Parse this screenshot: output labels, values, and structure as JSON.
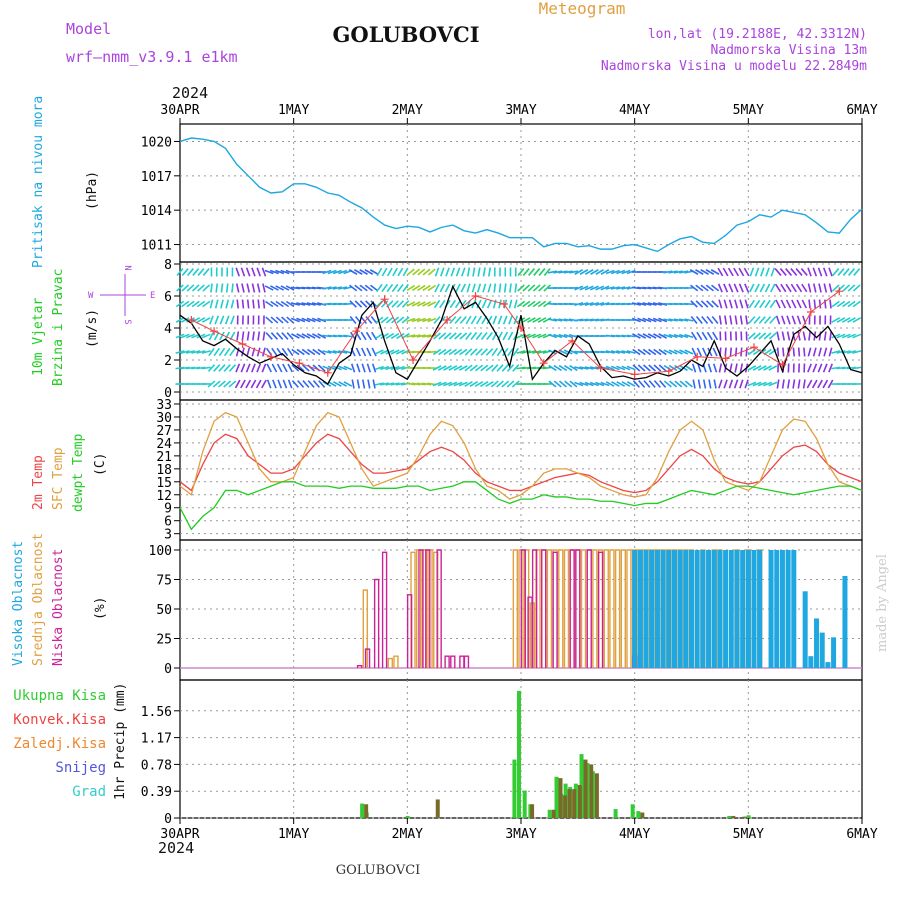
{
  "header": {
    "model_label": "Model",
    "model_name": "wrf—nmm_v3.9.1 e1km",
    "station": "GOLUBOVCI",
    "product": "Meteogram",
    "lonlat": "lon,lat (19.2188E, 42.3312N)",
    "elevation": "Nadmorska Visina 13m",
    "model_elevation": "Nadmorska Visina u modelu 22.2849m",
    "year": "2024",
    "footer_station": "GOLUBOVCI",
    "watermark": "made by Angel"
  },
  "colors": {
    "pressure": "#1ea7e0",
    "wind_label": "#22cc22",
    "temp2m": "#ee4444",
    "sfc": "#e0a040",
    "dewpt": "#22cc22",
    "cloud_high": "#1ea7e0",
    "cloud_mid": "#e0a040",
    "cloud_low": "#cc2299",
    "precip_total": "#33cc33",
    "precip_conv": "#ee4444",
    "precip_strat": "#ee8833",
    "snow": "#5555dd",
    "hail": "#33cccc",
    "direction": "#aa44dd"
  },
  "x_axis": {
    "dates": [
      "30APR",
      "1MAY",
      "2MAY",
      "3MAY",
      "4MAY",
      "5MAY",
      "6MAY"
    ]
  },
  "chart_data": [
    {
      "type": "line",
      "name": "pressure",
      "ylabel": "Pritisak na nivou mora",
      "unit": "(hPa)",
      "ylim": [
        1010,
        1021
      ],
      "yticks": [
        1011,
        1014,
        1017,
        1020
      ],
      "grid": true,
      "x_unit": "days from 30APR",
      "x": [
        0,
        0.1,
        0.2,
        0.3,
        0.4,
        0.5,
        0.6,
        0.7,
        0.8,
        0.9,
        1.0,
        1.1,
        1.2,
        1.3,
        1.4,
        1.5,
        1.6,
        1.7,
        1.8,
        1.9,
        2.0,
        2.1,
        2.2,
        2.3,
        2.4,
        2.5,
        2.6,
        2.7,
        2.8,
        2.9,
        3.0,
        3.1,
        3.2,
        3.3,
        3.4,
        3.5,
        3.6,
        3.7,
        3.8,
        3.9,
        4.0,
        4.1,
        4.2,
        4.3,
        4.4,
        4.5,
        4.6,
        4.7,
        4.8,
        4.9,
        5.0,
        5.1,
        5.2,
        5.3,
        5.4,
        5.5,
        5.6,
        5.7,
        5.8,
        5.9,
        6.0
      ],
      "values": [
        1020,
        1020.3,
        1020.2,
        1020,
        1019.4,
        1018,
        1017,
        1016,
        1015.5,
        1015.6,
        1016.3,
        1016.3,
        1016,
        1015.5,
        1015.3,
        1014.7,
        1014.2,
        1013.4,
        1012.7,
        1012.4,
        1012.6,
        1012.5,
        1012.1,
        1012.5,
        1012.7,
        1012.2,
        1012.0,
        1012.3,
        1012.0,
        1011.6,
        1011.6,
        1011.6,
        1010.8,
        1011.1,
        1011.1,
        1010.8,
        1010.9,
        1010.6,
        1010.6,
        1010.9,
        1011.0,
        1010.7,
        1010.4,
        1011.0,
        1011.5,
        1011.7,
        1011.2,
        1011.1,
        1011.8,
        1012.7,
        1013.0,
        1013.6,
        1013.4,
        1014.0,
        1013.8,
        1013.6,
        1012.9,
        1012.1,
        1012.0,
        1013.2,
        1014.1
      ]
    },
    {
      "type": "line",
      "name": "wind",
      "ylabel_1": "10m Vjetar",
      "ylabel_2": "Brzina i Pravac",
      "unit": "(m/s)",
      "ylim": [
        0,
        8
      ],
      "yticks": [
        0,
        2,
        4,
        6,
        8
      ],
      "compass": {
        "n": "N",
        "s": "S",
        "w": "W",
        "e": "E"
      },
      "x_unit": "days from 30APR",
      "speed_x": [
        0,
        0.1,
        0.2,
        0.3,
        0.4,
        0.5,
        0.6,
        0.7,
        0.8,
        0.9,
        1.0,
        1.1,
        1.2,
        1.3,
        1.4,
        1.5,
        1.6,
        1.7,
        1.8,
        1.9,
        2.0,
        2.1,
        2.2,
        2.3,
        2.4,
        2.5,
        2.6,
        2.7,
        2.8,
        2.9,
        3.0,
        3.1,
        3.2,
        3.3,
        3.4,
        3.5,
        3.6,
        3.7,
        3.8,
        3.9,
        4.0,
        4.1,
        4.2,
        4.3,
        4.4,
        4.5,
        4.6,
        4.7,
        4.8,
        4.9,
        5.0,
        5.1,
        5.2,
        5.3,
        5.4,
        5.5,
        5.6,
        5.7,
        5.8,
        5.9,
        6.0
      ],
      "speed": [
        4.8,
        4.3,
        3.2,
        2.9,
        3.3,
        2.7,
        2.2,
        1.8,
        2.1,
        2.4,
        1.7,
        1.2,
        1.0,
        0.5,
        1.8,
        2.3,
        4.8,
        5.6,
        3.2,
        1.2,
        0.8,
        2.0,
        3.2,
        4.5,
        6.6,
        5.2,
        5.6,
        4.6,
        3.4,
        1.6,
        4.8,
        0.8,
        1.8,
        2.6,
        2.2,
        3.5,
        3.0,
        1.6,
        0.9,
        1.0,
        0.8,
        0.9,
        1.2,
        1.0,
        1.3,
        2.0,
        1.6,
        3.2,
        1.5,
        1.0,
        1.6,
        2.4,
        3.2,
        1.3,
        3.6,
        4.1,
        3.4,
        4.1,
        3.0,
        1.4,
        1.2
      ],
      "gust_x": [
        0.1,
        0.3,
        0.55,
        0.8,
        1.05,
        1.3,
        1.55,
        1.8,
        2.05,
        2.35,
        2.6,
        2.85,
        3.0,
        3.2,
        3.45,
        3.7,
        4.0,
        4.3,
        4.55,
        4.8,
        5.05,
        5.3,
        5.55,
        5.8
      ],
      "gust": [
        4.5,
        3.8,
        3.0,
        2.2,
        1.8,
        1.2,
        3.8,
        5.8,
        2.0,
        4.5,
        6.0,
        5.5,
        4.0,
        1.8,
        3.2,
        1.5,
        1.1,
        1.3,
        2.2,
        2.1,
        2.8,
        1.7,
        5.0,
        6.3
      ],
      "direction_x": [
        0,
        0.25,
        0.5,
        0.75,
        1.0,
        1.25,
        1.5,
        1.75,
        2.0,
        2.25,
        2.5,
        2.75,
        3.0,
        3.25,
        3.5,
        3.75,
        4.0,
        4.25,
        4.5,
        4.75,
        5.0,
        5.25,
        5.5,
        5.75,
        6.0
      ],
      "direction_deg": [
        220,
        180,
        160,
        110,
        90,
        70,
        120,
        210,
        230,
        200,
        190,
        180,
        40,
        80,
        60,
        70,
        90,
        80,
        120,
        150,
        200,
        140,
        160,
        220,
        140
      ]
    },
    {
      "type": "line",
      "name": "temperature",
      "ylabel_1": "2m Temp",
      "ylabel_2": "SFC Temp",
      "ylabel_3": "dewpt Temp",
      "unit": "(C)",
      "ylim": [
        2,
        33
      ],
      "yticks": [
        3,
        6,
        9,
        12,
        15,
        18,
        21,
        24,
        27,
        30,
        33
      ],
      "x_unit": "days from 30APR",
      "x": [
        0,
        0.1,
        0.2,
        0.3,
        0.4,
        0.5,
        0.6,
        0.7,
        0.8,
        0.9,
        1.0,
        1.1,
        1.2,
        1.3,
        1.4,
        1.5,
        1.6,
        1.7,
        1.8,
        1.9,
        2.0,
        2.1,
        2.2,
        2.3,
        2.4,
        2.5,
        2.6,
        2.7,
        2.8,
        2.9,
        3.0,
        3.1,
        3.2,
        3.3,
        3.4,
        3.5,
        3.6,
        3.7,
        3.8,
        3.9,
        4.0,
        4.1,
        4.2,
        4.3,
        4.4,
        4.5,
        4.6,
        4.7,
        4.8,
        4.9,
        5.0,
        5.1,
        5.2,
        5.3,
        5.4,
        5.5,
        5.6,
        5.7,
        5.8,
        5.9,
        6.0
      ],
      "series": [
        {
          "name": "2m Temp",
          "values": [
            15,
            13,
            19,
            24,
            26,
            25,
            21,
            19,
            17,
            17,
            18,
            21,
            24,
            26,
            25,
            22,
            19,
            17,
            17,
            17.5,
            18,
            20,
            22,
            23,
            22,
            20,
            17,
            15,
            14,
            13,
            13,
            14,
            15,
            16,
            16.5,
            17,
            16.5,
            15,
            14,
            13,
            12.5,
            13,
            15,
            18,
            21,
            22.5,
            21,
            18,
            16,
            15,
            14.5,
            15,
            18,
            21,
            23,
            23.5,
            22,
            19,
            17,
            16,
            15
          ]
        },
        {
          "name": "SFC Temp",
          "values": [
            14,
            12,
            22,
            29,
            31,
            30,
            24,
            18,
            15,
            15,
            16,
            22,
            28,
            31,
            30,
            24,
            18,
            14,
            15,
            16,
            17,
            21,
            26,
            29,
            28,
            24,
            18,
            14,
            13,
            11,
            12,
            14,
            17,
            18,
            18,
            17,
            16,
            14,
            13,
            12,
            11.5,
            12,
            16,
            22,
            27,
            29,
            27,
            20,
            15,
            14,
            13,
            15,
            21,
            27,
            29.5,
            29,
            25,
            19,
            15,
            14,
            13
          ]
        },
        {
          "name": "dewpt Temp",
          "values": [
            9,
            4,
            7,
            9,
            13,
            13,
            12,
            13,
            14,
            15,
            15,
            14,
            14,
            14,
            13.5,
            14,
            14,
            13.5,
            13.5,
            13.5,
            14,
            14,
            13,
            13.5,
            14,
            15,
            15,
            13,
            11,
            10,
            11,
            11,
            12,
            11.5,
            11.5,
            11,
            11,
            10.5,
            10.5,
            10,
            9.5,
            10,
            10,
            11,
            12,
            13,
            12.5,
            12,
            13,
            14,
            14,
            13.5,
            13,
            12.5,
            12,
            12.5,
            13,
            13.5,
            14,
            14,
            13
          ]
        }
      ]
    },
    {
      "type": "bar",
      "name": "cloudiness",
      "ylabel_1": "Visoka Oblacnost",
      "ylabel_2": "Srednja Oblacnost",
      "ylabel_3": "Niska Oblacnost",
      "unit": "(%)",
      "ylim": [
        0,
        100
      ],
      "yticks": [
        0,
        25,
        50,
        75,
        100
      ],
      "x_unit": "days from 30APR",
      "series": [
        {
          "name": "Srednja Oblacnost",
          "x": [
            1.63,
            1.85,
            1.9,
            2.05,
            2.1,
            2.15,
            2.2,
            2.25,
            2.95,
            3.0,
            3.05,
            3.1,
            3.15,
            3.2,
            3.25,
            3.3,
            3.35,
            3.4,
            3.45,
            3.5,
            3.55,
            3.6,
            3.65,
            3.7,
            3.75,
            3.8,
            3.85,
            3.9,
            3.95,
            4.0,
            4.05,
            4.1,
            4.15,
            4.2,
            4.25,
            4.3,
            4.35,
            4.4,
            4.45,
            4.5,
            4.6,
            4.7,
            4.75,
            4.9,
            5.0,
            5.1
          ],
          "values": [
            66,
            8,
            10,
            98,
            100,
            100,
            100,
            98,
            100,
            100,
            100,
            55,
            100,
            100,
            100,
            100,
            100,
            100,
            100,
            100,
            100,
            100,
            100,
            100,
            100,
            100,
            100,
            100,
            100,
            100,
            100,
            100,
            100,
            100,
            100,
            100,
            100,
            100,
            100,
            100,
            100,
            100,
            100,
            100,
            100,
            100
          ]
        },
        {
          "name": "Niska Oblacnost",
          "x": [
            1.58,
            1.65,
            1.73,
            1.8,
            2.02,
            2.12,
            2.18,
            2.28,
            2.35,
            2.4,
            2.48,
            2.52,
            3.02,
            3.08,
            3.12,
            3.2,
            3.3,
            3.45,
            3.5,
            3.6,
            3.7,
            4.0
          ],
          "values": [
            2,
            16,
            75,
            98,
            62,
            100,
            100,
            100,
            10,
            10,
            10,
            10,
            100,
            60,
            100,
            100,
            98,
            100,
            100,
            100,
            98,
            10
          ]
        },
        {
          "name": "Visoka Oblacnost",
          "x": [
            4.0,
            4.05,
            4.1,
            4.15,
            4.2,
            4.25,
            4.3,
            4.35,
            4.4,
            4.45,
            4.5,
            4.55,
            4.6,
            4.65,
            4.7,
            4.75,
            4.8,
            4.85,
            4.9,
            4.95,
            5.0,
            5.05,
            5.1,
            5.2,
            5.25,
            5.3,
            5.35,
            5.4,
            5.5,
            5.55,
            5.6,
            5.65,
            5.7,
            5.75,
            5.85
          ],
          "values": [
            100,
            100,
            100,
            100,
            100,
            100,
            100,
            100,
            100,
            100,
            100,
            100,
            100,
            100,
            100,
            100,
            100,
            100,
            100,
            100,
            100,
            100,
            100,
            100,
            100,
            100,
            100,
            100,
            65,
            10,
            42,
            30,
            5,
            26,
            78
          ]
        }
      ]
    },
    {
      "type": "bar",
      "name": "precipitation",
      "ylabel": "1hr Precip (mm)",
      "legend": [
        "Ukupna Kisa",
        "Konvek.Kisa",
        "Zaledj.Kisa",
        "Snijeg",
        "Grad"
      ],
      "ylim": [
        0,
        1.95
      ],
      "yticks": [
        0,
        0.39,
        0.78,
        1.17,
        1.56
      ],
      "ytick_labels": [
        "0",
        "0.39",
        "0.78",
        "1.17",
        "1.56"
      ],
      "x_unit": "days from 30APR",
      "series": [
        {
          "name": "Ukupna Kisa",
          "x": [
            1.62,
            1.66,
            2.02,
            2.96,
            3.0,
            3.05,
            3.1,
            3.27,
            3.33,
            3.37,
            3.41,
            3.45,
            3.5,
            3.55,
            3.6,
            3.65,
            3.85,
            4.0,
            4.05,
            4.85,
            5.02
          ],
          "values": [
            0.21,
            0.08,
            0.03,
            0.85,
            1.85,
            0.4,
            0.2,
            0.12,
            0.6,
            0.35,
            0.5,
            0.45,
            0.5,
            0.93,
            0.8,
            0.68,
            0.13,
            0.2,
            0.1,
            0.03,
            0.04
          ]
        },
        {
          "name": "Zaledj.Kisa",
          "x": [
            1.62,
            2.25,
            3.08,
            3.27,
            3.33,
            3.37,
            3.41,
            3.45,
            3.5,
            3.55,
            3.6,
            3.65,
            4.05,
            4.85,
            4.95
          ],
          "values": [
            0.2,
            0.27,
            0.2,
            0.12,
            0.58,
            0.33,
            0.42,
            0.42,
            0.48,
            0.85,
            0.78,
            0.65,
            0.08,
            0.03,
            0.02
          ]
        }
      ]
    }
  ]
}
